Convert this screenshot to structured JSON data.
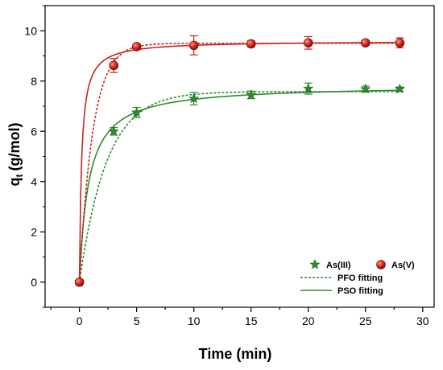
{
  "chart_data": {
    "type": "scatter",
    "xlabel": "Time (min)",
    "ylabel_main": "q",
    "ylabel_sub": "t",
    "ylabel_unit": "(g/mol)",
    "xlim": [
      -3,
      31
    ],
    "ylim": [
      -1,
      11
    ],
    "xticks": [
      0,
      5,
      10,
      15,
      20,
      25,
      30
    ],
    "yticks": [
      0,
      2,
      4,
      6,
      8,
      10
    ],
    "grid": false,
    "legend_position": "bottom-right",
    "series": [
      {
        "name": "As(III)",
        "marker": "star",
        "color": "#2e8b2e",
        "points": [
          {
            "x": 0,
            "y": 0,
            "err": 0
          },
          {
            "x": 3,
            "y": 6.0,
            "err": 0.15
          },
          {
            "x": 5,
            "y": 6.75,
            "err": 0.2
          },
          {
            "x": 10,
            "y": 7.3,
            "err": 0.25
          },
          {
            "x": 15,
            "y": 7.45,
            "err": 0.15
          },
          {
            "x": 20,
            "y": 7.7,
            "err": 0.22
          },
          {
            "x": 25,
            "y": 7.68,
            "err": 0.12
          },
          {
            "x": 28,
            "y": 7.68,
            "err": 0.08
          }
        ],
        "pfo": {
          "qe": 7.58,
          "k1": 0.42
        },
        "pso": {
          "qe": 7.85,
          "k2": 0.16
        }
      },
      {
        "name": "As(V)",
        "marker": "circle",
        "color": "#cc2222",
        "points": [
          {
            "x": 0,
            "y": 0,
            "err": 0
          },
          {
            "x": 3,
            "y": 8.62,
            "err": 0.28
          },
          {
            "x": 5,
            "y": 9.37,
            "err": 0.1
          },
          {
            "x": 10,
            "y": 9.42,
            "err": 0.38
          },
          {
            "x": 15,
            "y": 9.48,
            "err": 0.12
          },
          {
            "x": 20,
            "y": 9.52,
            "err": 0.25
          },
          {
            "x": 25,
            "y": 9.52,
            "err": 0.08
          },
          {
            "x": 28,
            "y": 9.52,
            "err": 0.2
          }
        ],
        "pfo": {
          "qe": 9.5,
          "k1": 0.85
        },
        "pso": {
          "qe": 9.6,
          "k2": 0.55
        }
      }
    ],
    "legend": {
      "markers": [
        "As(III)",
        "As(V)"
      ],
      "lines": [
        {
          "label": "PFO fitting",
          "style": "dashed"
        },
        {
          "label": "PSO fitting",
          "style": "solid"
        }
      ]
    }
  }
}
